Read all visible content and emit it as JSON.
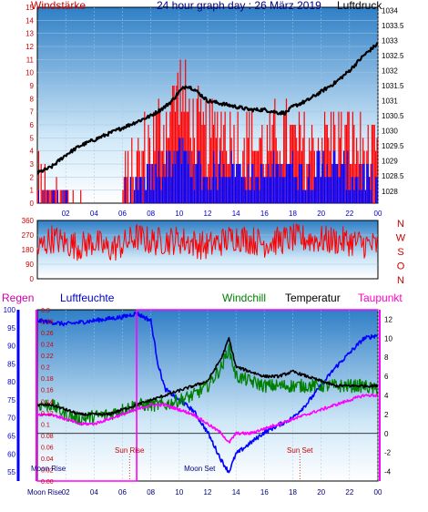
{
  "header": {
    "left": "Windstärke",
    "center": "24 hour graph day : 26 März 2019",
    "right": "Luftdruck"
  },
  "colors": {
    "wind_red": "#ff0000",
    "wind_blue": "#0000ff",
    "pressure": "#000000",
    "humidity": "#0000ff",
    "windchill": "#008000",
    "temperature": "#000000",
    "dewpoint": "#ff00ff",
    "rain": "#ff00ff",
    "label_blue": "#0000cc",
    "label_red": "#cc0000",
    "label_mag": "#cc0066",
    "label_navy": "#000080"
  },
  "chart_data": [
    {
      "type": "line",
      "name_panel": "wind_pressure",
      "x_ticks": [
        "02",
        "04",
        "06",
        "08",
        "10",
        "12",
        "14",
        "16",
        "18",
        "20",
        "22",
        "00"
      ],
      "x_range": [
        0,
        24
      ],
      "left_axis": {
        "ticks": [
          0,
          1,
          2,
          3,
          4,
          5,
          6,
          7,
          8,
          9,
          10,
          11,
          12,
          13,
          14,
          15
        ],
        "range": [
          0,
          15
        ]
      },
      "right_axis": {
        "ticks": [
          1028,
          1028.5,
          1029,
          1029.5,
          1030,
          1030.5,
          1031,
          1031.5,
          1032,
          1032.5,
          1033,
          1033.5,
          1034
        ],
        "tick_labels": [
          "1028",
          "1028.5",
          "1029",
          "1029.5",
          "1030",
          "1030.5",
          "1031",
          "1031.5",
          "1032",
          "1032.5",
          "1033",
          "1033.5",
          "1034"
        ],
        "range": [
          1027.6,
          1034.1
        ]
      },
      "series": [
        {
          "values": [
            [
              0,
              1028.6
            ],
            [
              1,
              1028.8
            ],
            [
              2,
              1029.2
            ],
            [
              3,
              1029.5
            ],
            [
              4,
              1029.7
            ],
            [
              5,
              1029.9
            ],
            [
              6,
              1030.1
            ],
            [
              7,
              1030.3
            ],
            [
              8,
              1030.5
            ],
            [
              9,
              1030.8
            ],
            [
              9.5,
              1031.0
            ],
            [
              10,
              1031.3
            ],
            [
              10.5,
              1031.5
            ],
            [
              11,
              1031.4
            ],
            [
              11.5,
              1031.2
            ],
            [
              12,
              1031.0
            ],
            [
              13,
              1030.9
            ],
            [
              14,
              1030.8
            ],
            [
              15,
              1030.7
            ],
            [
              16,
              1030.7
            ],
            [
              17,
              1030.6
            ],
            [
              17.5,
              1030.6
            ],
            [
              18,
              1030.8
            ],
            [
              19,
              1031.0
            ],
            [
              20,
              1031.3
            ],
            [
              21,
              1031.6
            ],
            [
              22,
              1032.0
            ],
            [
              23,
              1032.5
            ],
            [
              23.5,
              1032.7
            ],
            [
              24,
              1032.9
            ]
          ]
        },
        {
          "values": [
            [
              0,
              1
            ],
            [
              2,
              0
            ],
            [
              4,
              0
            ],
            [
              6,
              1
            ],
            [
              7,
              3
            ],
            [
              8,
              5
            ],
            [
              9,
              6
            ],
            [
              10,
              9
            ],
            [
              11,
              6
            ],
            [
              12,
              5
            ],
            [
              13,
              6
            ],
            [
              14,
              5
            ],
            [
              15,
              5
            ],
            [
              16,
              4
            ],
            [
              17,
              5
            ],
            [
              18,
              5
            ],
            [
              19,
              4
            ],
            [
              20,
              5
            ],
            [
              21,
              5
            ],
            [
              22,
              5
            ],
            [
              23,
              4
            ],
            [
              24,
              3
            ]
          ]
        },
        {
          "values": [
            [
              0,
              0
            ],
            [
              2,
              0
            ],
            [
              4,
              0
            ],
            [
              6,
              0
            ],
            [
              7,
              1
            ],
            [
              8,
              2
            ],
            [
              9,
              3
            ],
            [
              10,
              4
            ],
            [
              11,
              3
            ],
            [
              12,
              2
            ],
            [
              13,
              3
            ],
            [
              14,
              3
            ],
            [
              15,
              2
            ],
            [
              16,
              2
            ],
            [
              17,
              3
            ],
            [
              18,
              3
            ],
            [
              19,
              2
            ],
            [
              20,
              3
            ],
            [
              21,
              3
            ],
            [
              22,
              2
            ],
            [
              23,
              2
            ],
            [
              24,
              1
            ]
          ]
        }
      ]
    },
    {
      "type": "line",
      "name_panel": "wind_direction",
      "left_axis": {
        "ticks": [
          0,
          90,
          180,
          270,
          360
        ],
        "range": [
          0,
          360
        ]
      },
      "right_labels": [
        "N",
        "W",
        "S",
        "O",
        "N"
      ],
      "series": [
        {
          "values": [
            [
              0,
              180
            ],
            [
              1,
              250
            ],
            [
              2,
              220
            ],
            [
              3,
              200
            ],
            [
              4,
              230
            ],
            [
              5,
              180
            ],
            [
              6,
              210
            ],
            [
              7,
              260
            ],
            [
              8,
              230
            ],
            [
              10,
              240
            ],
            [
              12,
              200
            ],
            [
              14,
              260
            ],
            [
              16,
              220
            ],
            [
              18,
              250
            ],
            [
              20,
              240
            ],
            [
              22,
              230
            ],
            [
              24,
              200
            ]
          ]
        }
      ]
    },
    {
      "type": "line",
      "name_panel": "humidity_temperature",
      "x_ticks": [
        "02",
        "04",
        "06",
        "08",
        "10",
        "12",
        "14",
        "16",
        "18",
        "20",
        "22",
        "00"
      ],
      "x_range": [
        0,
        24
      ],
      "rain_axis": {
        "ticks": [
          0.0,
          0.02,
          0.04,
          0.06,
          0.08,
          0.1,
          0.12,
          0.14,
          0.16,
          0.18,
          0.2,
          0.22,
          0.24,
          0.26,
          0.28,
          0.3
        ],
        "tick_labels": [
          "0.00",
          "0.02",
          "0.04",
          "0.06",
          "0.08",
          "0.1",
          "0.12",
          "0.14",
          "0.16",
          "0.18",
          "0.2",
          "0.22",
          "0.24",
          "0.26",
          "0.28",
          "0.3"
        ],
        "range": [
          0.0,
          0.3
        ]
      },
      "humidity_axis": {
        "ticks": [
          55,
          60,
          65,
          70,
          75,
          80,
          85,
          90,
          95,
          100
        ],
        "range": [
          52.5,
          100
        ]
      },
      "temp_axis": {
        "ticks": [
          -4,
          -2,
          0,
          2,
          4,
          6,
          8,
          10,
          12
        ],
        "range": [
          -5,
          13
        ]
      },
      "series": [
        {
          "values": [
            [
              0,
              97
            ],
            [
              2,
              96
            ],
            [
              4,
              97
            ],
            [
              6,
              98
            ],
            [
              7,
              99
            ],
            [
              8,
              97
            ],
            [
              8.5,
              85
            ],
            [
              9,
              78
            ],
            [
              10,
              75
            ],
            [
              11,
              72
            ],
            [
              12,
              66
            ],
            [
              13,
              58
            ],
            [
              13.5,
              55
            ],
            [
              14,
              60
            ],
            [
              15,
              63
            ],
            [
              16,
              66
            ],
            [
              17,
              68
            ],
            [
              18,
              70
            ],
            [
              19,
              74
            ],
            [
              20,
              79
            ],
            [
              21,
              84
            ],
            [
              22,
              88
            ],
            [
              23,
              92
            ],
            [
              24,
              93
            ]
          ]
        },
        {
          "values": [
            [
              0,
              3
            ],
            [
              1,
              3
            ],
            [
              2,
              2
            ],
            [
              3,
              1.5
            ],
            [
              4,
              1.8
            ],
            [
              5,
              2.0
            ],
            [
              6,
              2.5
            ],
            [
              7,
              3
            ],
            [
              8,
              3
            ],
            [
              9,
              3
            ],
            [
              10,
              3.5
            ],
            [
              11,
              4
            ],
            [
              12,
              5
            ],
            [
              13,
              7
            ],
            [
              13.5,
              9
            ],
            [
              14,
              6
            ],
            [
              15,
              5.5
            ],
            [
              16,
              5
            ],
            [
              17,
              5
            ],
            [
              18,
              5
            ],
            [
              19,
              5
            ],
            [
              20,
              5
            ],
            [
              21,
              5
            ],
            [
              22,
              5
            ],
            [
              23,
              5
            ],
            [
              24,
              4.5
            ]
          ]
        },
        {
          "values": [
            [
              0,
              3
            ],
            [
              1,
              3
            ],
            [
              2,
              2.5
            ],
            [
              3,
              2
            ],
            [
              4,
              2
            ],
            [
              5,
              2
            ],
            [
              6,
              2.5
            ],
            [
              7,
              3
            ],
            [
              8,
              3.5
            ],
            [
              9,
              4
            ],
            [
              10,
              4.5
            ],
            [
              11,
              5
            ],
            [
              12,
              5.5
            ],
            [
              13,
              8
            ],
            [
              13.5,
              10
            ],
            [
              14,
              7
            ],
            [
              15,
              6.5
            ],
            [
              16,
              6
            ],
            [
              17,
              6
            ],
            [
              18,
              6.5
            ],
            [
              19,
              6
            ],
            [
              20,
              5.5
            ],
            [
              21,
              5
            ],
            [
              22,
              5
            ],
            [
              23,
              5
            ],
            [
              24,
              5
            ]
          ]
        },
        {
          "values": [
            [
              0,
              2
            ],
            [
              1,
              2
            ],
            [
              2,
              1.5
            ],
            [
              3,
              1
            ],
            [
              4,
              1
            ],
            [
              5,
              1.5
            ],
            [
              6,
              2
            ],
            [
              7,
              2.5
            ],
            [
              8,
              3
            ],
            [
              9,
              3
            ],
            [
              10,
              2.5
            ],
            [
              11,
              2
            ],
            [
              12,
              1
            ],
            [
              13,
              0
            ],
            [
              13.5,
              -1
            ],
            [
              14,
              0
            ],
            [
              15,
              0
            ],
            [
              16,
              0.5
            ],
            [
              17,
              1
            ],
            [
              18,
              1.5
            ],
            [
              19,
              2
            ],
            [
              20,
              2.5
            ],
            [
              21,
              3
            ],
            [
              22,
              3.5
            ],
            [
              23,
              4
            ],
            [
              24,
              4
            ]
          ]
        },
        {
          "values": [
            [
              0,
              0
            ],
            [
              7,
              0
            ],
            [
              7,
              0.3
            ],
            [
              24,
              0.3
            ]
          ]
        }
      ],
      "annotations": [
        {
          "text": "Sun Rise",
          "x": 6.5
        },
        {
          "text": "Moon Set",
          "x": 9
        },
        {
          "text": "Sun Set",
          "x": 18.5
        },
        {
          "text": "Moon Rise",
          "x": 0.5
        },
        {
          "text": "Moon Rise",
          "x": 2
        }
      ]
    }
  ],
  "panel3_labels": {
    "regen": "Regen",
    "luftfeuchte": "Luftfeuchte",
    "windchill": "Windchill",
    "temperatur": "Temperatur",
    "taupunkt": "Taupunkt"
  },
  "moon_rise_bottom": "Moon Rise"
}
